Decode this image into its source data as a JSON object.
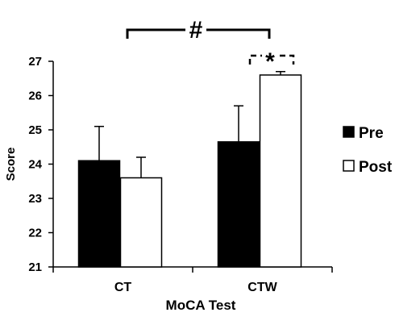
{
  "chart_data": {
    "type": "bar",
    "categories": [
      "CT",
      "CTW"
    ],
    "series": [
      {
        "name": "Pre",
        "values": [
          24.1,
          24.65
        ],
        "error": [
          1.0,
          1.05
        ],
        "color": "#000000"
      },
      {
        "name": "Post",
        "values": [
          23.6,
          26.6
        ],
        "error": [
          0.6,
          0.1
        ],
        "color": "#ffffff"
      }
    ],
    "xlabel": "MoCA Test",
    "ylabel": "Score",
    "ylim": [
      21,
      27
    ],
    "yticks": [
      "21",
      "22",
      "23",
      "24",
      "25",
      "26",
      "27"
    ],
    "grid": false,
    "legend": "right",
    "annotations": [
      {
        "label": "#",
        "between": [
          "CT",
          "CTW"
        ],
        "style": "solid-bracket"
      },
      {
        "label": "*",
        "between": [
          "CTW Pre",
          "CTW Post"
        ],
        "style": "dashed-bracket"
      }
    ]
  }
}
